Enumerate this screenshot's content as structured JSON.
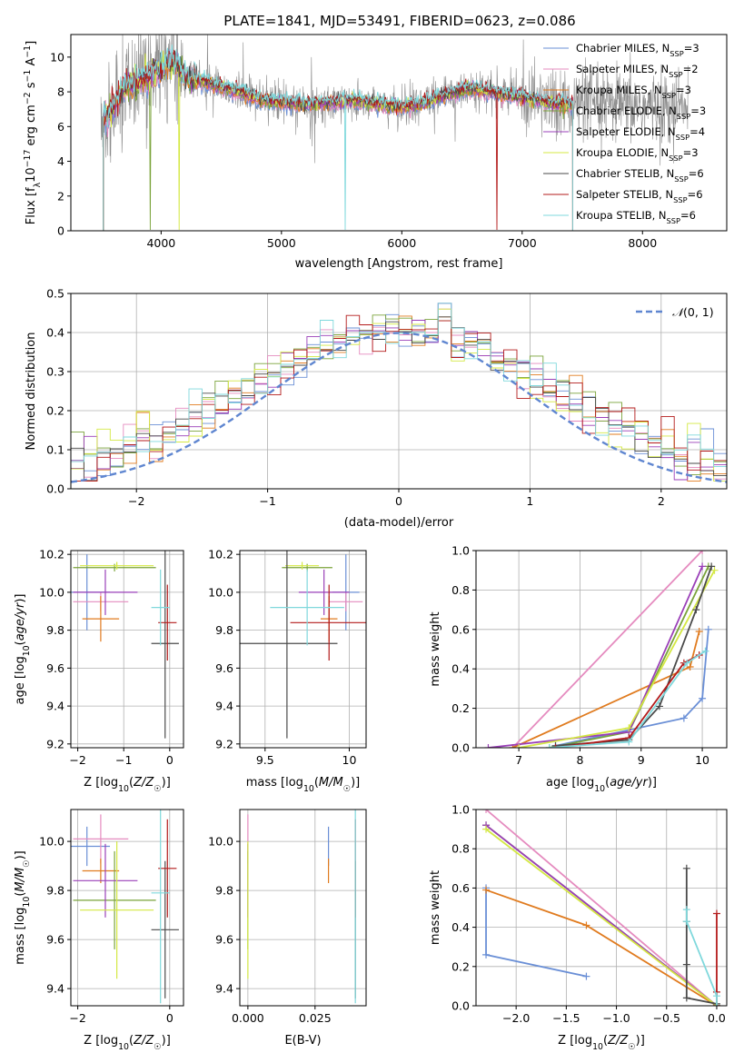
{
  "figure_title": "PLATE=1841, MJD=53491, FIBERID=0623, z=0.086",
  "colors": {
    "Chabrier MILES": "#6a8fd6",
    "Salpeter MILES": "#e58bbf",
    "Kroupa MILES": "#e07b1f",
    "Chabrier ELODIE": "#7aa33a",
    "Salpeter ELODIE": "#9a3fb8",
    "Kroupa ELODIE": "#d4e843",
    "Chabrier STELIB": "#4a4a4a",
    "Salpeter STELIB": "#b31b1b",
    "Kroupa STELIB": "#7fd8dc",
    "data": "#8c8c8c"
  },
  "chart_data": [
    {
      "id": "spectrum",
      "type": "line",
      "title": "PLATE=1841, MJD=53491, FIBERID=0623, z=0.086",
      "xlabel": "wavelength [Angstrom, rest frame]",
      "ylabel": "Flux [fλ10⁻¹⁷ erg cm⁻² s⁻¹ A⁻¹]",
      "xlim": [
        3250,
        8700
      ],
      "ylim": [
        0,
        11.3
      ],
      "xticks": [
        4000,
        5000,
        6000,
        7000,
        8000
      ],
      "yticks": [
        0,
        2,
        4,
        6,
        8,
        10
      ],
      "grid": false,
      "legend_position": "top-right",
      "legend": [
        "Chabrier MILES, N_SSP=3",
        "Salpeter MILES, N_SSP=2",
        "Kroupa MILES, N_SSP=3",
        "Chabrier ELODIE, N_SSP=3",
        "Salpeter ELODIE, N_SSP=4",
        "Kroupa ELODIE, N_SSP=3",
        "Chabrier STELIB, N_SSP=6",
        "Salpeter STELIB, N_SSP=6",
        "Kroupa STELIB, N_SSP=6"
      ],
      "continuum": {
        "x": [
          3500,
          3600,
          3700,
          3800,
          3900,
          4000,
          4100,
          4200,
          4400,
          4600,
          4800,
          5000,
          5200,
          5400,
          5600,
          5800,
          6000,
          6200,
          6400,
          6600,
          6800,
          7000,
          7200,
          7400
        ],
        "y": [
          6.4,
          7.0,
          8.3,
          8.6,
          8.9,
          9.3,
          9.8,
          8.9,
          8.5,
          8.1,
          7.6,
          7.4,
          7.3,
          7.4,
          7.5,
          7.3,
          7.1,
          7.4,
          7.9,
          8.2,
          7.9,
          7.7,
          7.4,
          7.3
        ]
      },
      "data_extent": [
        3500,
        8380
      ],
      "model_extent": [
        3520,
        7420
      ]
    },
    {
      "id": "residuals",
      "type": "line",
      "xlabel": "(data-model)/error",
      "ylabel": "Normed distribution",
      "xlim": [
        -2.5,
        2.5
      ],
      "ylim": [
        0,
        0.5
      ],
      "xticks": [
        -2,
        -1,
        0,
        1,
        2
      ],
      "yticks": [
        0.0,
        0.1,
        0.2,
        0.3,
        0.4,
        0.5
      ],
      "grid": true,
      "legend_position": "top-right",
      "legend": [
        "𝒩(0, 1)"
      ],
      "bins": 50,
      "peak_values": [
        0.475,
        0.46,
        0.44,
        0.43
      ]
    },
    {
      "id": "age_vs_Z",
      "type": "scatter",
      "xlabel": "Z [log10(Z/Z☉)]",
      "ylabel": "age [log10(age/yr)]",
      "xlim": [
        -2.15,
        0.3
      ],
      "ylim": [
        9.18,
        10.22
      ],
      "xticks": [
        -2,
        -1,
        0
      ],
      "yticks": [
        9.2,
        9.4,
        9.6,
        9.8,
        10.0,
        10.2
      ],
      "grid": true,
      "points": [
        {
          "model": "Chabrier MILES",
          "x": -1.8,
          "y": 10.0,
          "xerr": 0.5,
          "yerr": 0.2
        },
        {
          "model": "Salpeter MILES",
          "x": -1.5,
          "y": 9.95,
          "xerr": 0.6,
          "yerr": 0.05
        },
        {
          "model": "Kroupa MILES",
          "x": -1.5,
          "y": 9.86,
          "xerr": 0.4,
          "yerr": 0.12
        },
        {
          "model": "Chabrier ELODIE",
          "x": -1.2,
          "y": 10.13,
          "xerr": 0.9,
          "yerr": 0.02
        },
        {
          "model": "Salpeter ELODIE",
          "x": -1.4,
          "y": 10.0,
          "xerr": 0.7,
          "yerr": 0.12
        },
        {
          "model": "Kroupa ELODIE",
          "x": -1.15,
          "y": 10.14,
          "xerr": 0.8,
          "yerr": 0.02
        },
        {
          "model": "Chabrier STELIB",
          "x": -0.1,
          "y": 9.73,
          "xerr": 0.3,
          "yerr": 0.5
        },
        {
          "model": "Salpeter STELIB",
          "x": -0.05,
          "y": 9.84,
          "xerr": 0.2,
          "yerr": 0.2
        },
        {
          "model": "Kroupa STELIB",
          "x": -0.2,
          "y": 9.92,
          "xerr": 0.2,
          "yerr": 0.2
        }
      ]
    },
    {
      "id": "age_vs_mass",
      "type": "scatter",
      "xlabel": "mass [log10(M/M☉)]",
      "ylabel": "",
      "xlim": [
        9.35,
        10.1
      ],
      "ylim": [
        9.18,
        10.22
      ],
      "xticks": [
        9.5,
        10.0
      ],
      "yticks": [
        9.2,
        9.4,
        9.6,
        9.8,
        10.0,
        10.2
      ],
      "grid": true,
      "points": [
        {
          "model": "Chabrier MILES",
          "x": 9.98,
          "y": 10.0,
          "xerr": 0.08,
          "yerr": 0.2
        },
        {
          "model": "Salpeter MILES",
          "x": 9.98,
          "y": 9.95,
          "xerr": 0.1,
          "yerr": 0.05
        },
        {
          "model": "Kroupa MILES",
          "x": 9.88,
          "y": 9.86,
          "xerr": 0.05,
          "yerr": 0.12
        },
        {
          "model": "Chabrier ELODIE",
          "x": 9.75,
          "y": 10.13,
          "xerr": 0.15,
          "yerr": 0.02
        },
        {
          "model": "Salpeter ELODIE",
          "x": 9.85,
          "y": 10.0,
          "xerr": 0.15,
          "yerr": 0.12
        },
        {
          "model": "Kroupa ELODIE",
          "x": 9.72,
          "y": 10.14,
          "xerr": 0.1,
          "yerr": 0.02
        },
        {
          "model": "Chabrier STELIB",
          "x": 9.63,
          "y": 9.73,
          "xerr": 0.3,
          "yerr": 0.5
        },
        {
          "model": "Salpeter STELIB",
          "x": 9.88,
          "y": 9.84,
          "xerr": 0.23,
          "yerr": 0.2
        },
        {
          "model": "Kroupa STELIB",
          "x": 9.75,
          "y": 9.92,
          "xerr": 0.22,
          "yerr": 0.2
        }
      ]
    },
    {
      "id": "mass_weight_vs_age",
      "type": "line",
      "xlabel": "age [log10(age/yr)]",
      "ylabel": "mass weight",
      "xlim": [
        6.3,
        10.4
      ],
      "ylim": [
        0,
        1.0
      ],
      "xticks": [
        7,
        8,
        9,
        10
      ],
      "yticks": [
        0.0,
        0.2,
        0.4,
        0.6,
        0.8,
        1.0
      ],
      "grid": true,
      "series": [
        {
          "model": "Chabrier MILES",
          "x": [
            7.6,
            9.7,
            10.0,
            10.1
          ],
          "y": [
            0.01,
            0.15,
            0.25,
            0.6
          ]
        },
        {
          "model": "Salpeter MILES",
          "x": [
            6.9,
            10.0
          ],
          "y": [
            0.0,
            1.0
          ]
        },
        {
          "model": "Kroupa MILES",
          "x": [
            6.9,
            9.8,
            9.95
          ],
          "y": [
            0.0,
            0.41,
            0.59
          ]
        },
        {
          "model": "Chabrier ELODIE",
          "x": [
            7.5,
            8.8,
            10.1
          ],
          "y": [
            0.0,
            0.08,
            0.92
          ]
        },
        {
          "model": "Salpeter ELODIE",
          "x": [
            6.5,
            8.8,
            10.0
          ],
          "y": [
            0.0,
            0.08,
            0.92
          ]
        },
        {
          "model": "Kroupa ELODIE",
          "x": [
            7.0,
            8.8,
            10.2
          ],
          "y": [
            0.0,
            0.1,
            0.9
          ]
        },
        {
          "model": "Chabrier STELIB",
          "x": [
            7.6,
            8.8,
            9.3,
            9.9,
            10.15
          ],
          "y": [
            0.01,
            0.04,
            0.21,
            0.7,
            0.92
          ]
        },
        {
          "model": "Salpeter STELIB",
          "x": [
            7.6,
            8.8,
            9.7,
            9.95
          ],
          "y": [
            0.0,
            0.05,
            0.43,
            0.47
          ]
        },
        {
          "model": "Kroupa STELIB",
          "x": [
            7.5,
            8.8,
            9.75,
            10.05
          ],
          "y": [
            0.0,
            0.03,
            0.43,
            0.49
          ]
        }
      ]
    },
    {
      "id": "mass_vs_Z",
      "type": "scatter",
      "xlabel": "Z [log10(Z/Z☉)]",
      "ylabel": "mass [log10(M/M☉)]",
      "xlim": [
        -2.15,
        0.3
      ],
      "ylim": [
        9.33,
        10.13
      ],
      "xticks": [
        -2,
        0
      ],
      "yticks": [
        9.4,
        9.6,
        9.8,
        10.0
      ],
      "grid": true,
      "points": [
        {
          "model": "Chabrier MILES",
          "x": -1.8,
          "y": 9.98,
          "xerr": 0.5,
          "yerr": 0.08
        },
        {
          "model": "Salpeter MILES",
          "x": -1.5,
          "y": 10.01,
          "xerr": 0.6,
          "yerr": 0.1
        },
        {
          "model": "Kroupa MILES",
          "x": -1.5,
          "y": 9.88,
          "xerr": 0.4,
          "yerr": 0.05
        },
        {
          "model": "Chabrier ELODIE",
          "x": -1.2,
          "y": 9.76,
          "xerr": 0.9,
          "yerr": 0.2
        },
        {
          "model": "Salpeter ELODIE",
          "x": -1.4,
          "y": 9.84,
          "xerr": 0.7,
          "yerr": 0.15
        },
        {
          "model": "Kroupa ELODIE",
          "x": -1.15,
          "y": 9.72,
          "xerr": 0.8,
          "yerr": 0.28
        },
        {
          "model": "Chabrier STELIB",
          "x": -0.1,
          "y": 9.64,
          "xerr": 0.3,
          "yerr": 0.28
        },
        {
          "model": "Salpeter STELIB",
          "x": -0.05,
          "y": 9.89,
          "xerr": 0.2,
          "yerr": 0.2
        },
        {
          "model": "Kroupa STELIB",
          "x": -0.2,
          "y": 9.79,
          "xerr": 0.2,
          "yerr": 0.45
        }
      ]
    },
    {
      "id": "mass_vs_ebv",
      "type": "scatter",
      "xlabel": "E(B-V)",
      "ylabel": "",
      "xlim": [
        -0.003,
        0.044
      ],
      "ylim": [
        9.33,
        10.13
      ],
      "xticks": [
        0.0,
        0.025
      ],
      "xticklabels": [
        "0.000",
        "0.025"
      ],
      "yticks": [
        9.4,
        9.6,
        9.8,
        10.0
      ],
      "grid": true,
      "points": [
        {
          "model": "Chabrier MILES",
          "x": 0.03,
          "y": 9.98,
          "yerr": 0.08
        },
        {
          "model": "Salpeter MILES",
          "x": 0.0,
          "y": 10.01,
          "yerr": 0.1
        },
        {
          "model": "Kroupa MILES",
          "x": 0.03,
          "y": 9.88,
          "yerr": 0.05
        },
        {
          "model": "Chabrier ELODIE",
          "x": 0.0,
          "y": 9.76,
          "yerr": 0.2
        },
        {
          "model": "Salpeter ELODIE",
          "x": 0.0,
          "y": 9.84,
          "yerr": 0.15
        },
        {
          "model": "Kroupa ELODIE",
          "x": 0.0,
          "y": 9.72,
          "yerr": 0.28
        },
        {
          "model": "Chabrier STELIB",
          "x": 0.04,
          "y": 9.64,
          "yerr": 0.28
        },
        {
          "model": "Salpeter STELIB",
          "x": 0.04,
          "y": 9.89,
          "yerr": 0.2
        },
        {
          "model": "Kroupa STELIB",
          "x": 0.04,
          "y": 9.79,
          "yerr": 0.45
        }
      ]
    },
    {
      "id": "mass_weight_vs_Z",
      "type": "line",
      "xlabel": "Z [log10(Z/Z☉)]",
      "ylabel": "mass weight",
      "xlim": [
        -2.4,
        0.1
      ],
      "ylim": [
        0,
        1.0
      ],
      "xticks": [
        -2.0,
        -1.5,
        -1.0,
        -0.5,
        0.0
      ],
      "xticklabels": [
        "−2.0",
        "−1.5",
        "−1.0",
        "−0.5",
        "0.0"
      ],
      "yticks": [
        0.0,
        0.2,
        0.4,
        0.6,
        0.8,
        1.0
      ],
      "grid": true,
      "series": [
        {
          "model": "Chabrier MILES",
          "x": [
            -1.3,
            -2.3,
            -2.3
          ],
          "y": [
            0.15,
            0.26,
            0.6
          ]
        },
        {
          "model": "Salpeter MILES",
          "x": [
            -2.3,
            0.0
          ],
          "y": [
            1.0,
            0.0
          ]
        },
        {
          "model": "Kroupa MILES",
          "x": [
            -2.3,
            -1.3,
            0.0,
            0.0
          ],
          "y": [
            0.59,
            0.41,
            0.0,
            0.0
          ]
        },
        {
          "model": "Chabrier ELODIE",
          "x": [
            -2.3,
            0.0
          ],
          "y": [
            0.92,
            0.0
          ]
        },
        {
          "model": "Salpeter ELODIE",
          "x": [
            -2.3,
            0.0
          ],
          "y": [
            0.92,
            0.0
          ]
        },
        {
          "model": "Kroupa ELODIE",
          "x": [
            -2.3,
            0.0
          ],
          "y": [
            0.9,
            0.0
          ]
        },
        {
          "model": "Chabrier STELIB",
          "x": [
            -0.3,
            -0.3,
            -0.3,
            -0.3,
            0.0
          ],
          "y": [
            0.7,
            0.43,
            0.21,
            0.04,
            0.01
          ]
        },
        {
          "model": "Salpeter STELIB",
          "x": [
            0.0,
            0.0,
            0.0,
            0.0
          ],
          "y": [
            0.47,
            0.07,
            0.0,
            0.0
          ]
        },
        {
          "model": "Kroupa STELIB",
          "x": [
            -0.3,
            -0.3,
            0.0,
            0.0
          ],
          "y": [
            0.49,
            0.43,
            0.05,
            0.0
          ]
        }
      ]
    }
  ]
}
